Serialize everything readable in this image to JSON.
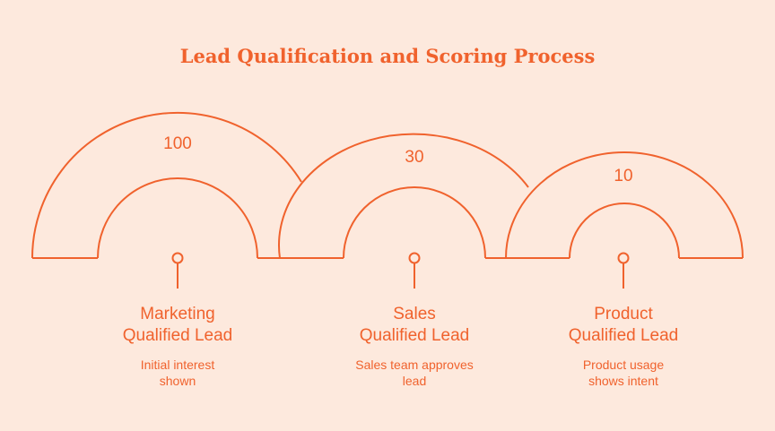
{
  "title": "Lead Qualification and Scoring Process",
  "stages": [
    {
      "score": "100",
      "title_line1": "Marketing",
      "title_line2": "Qualified Lead",
      "desc_line1": "Initial interest",
      "desc_line2": "shown"
    },
    {
      "score": "30",
      "title_line1": "Sales",
      "title_line2": "Qualified Lead",
      "desc_line1": "Sales team approves",
      "desc_line2": "lead"
    },
    {
      "score": "10",
      "title_line1": "Product",
      "title_line2": "Qualified Lead",
      "desc_line1": "Product usage",
      "desc_line2": "shows intent"
    }
  ],
  "colors": {
    "accent": "#f0622d",
    "background": "#fde9dd"
  }
}
